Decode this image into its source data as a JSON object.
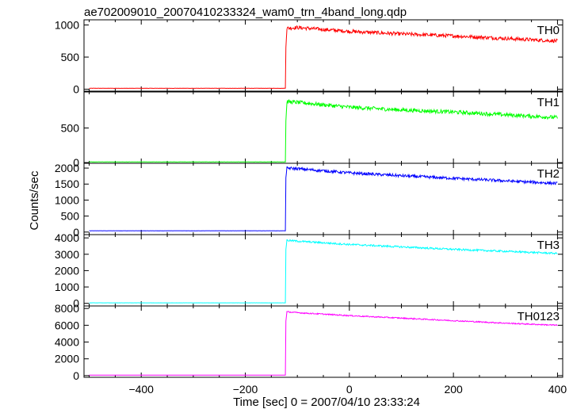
{
  "chart_data": {
    "type": "line",
    "title": "ae702009010_20070410233324_wam0_trn_4band_long.qdp",
    "xlabel": "Time [sec] 0 = 2007/04/10 23:33:24",
    "ylabel": "Counts/sec",
    "xlim": [
      -510,
      410
    ],
    "x_ticks": [
      -400,
      -200,
      0,
      200,
      400
    ],
    "grid": false,
    "panels": [
      {
        "name": "TH0",
        "color": "#ff0000",
        "ylim": [
          -30,
          1080
        ],
        "y_ticks": [
          0,
          500,
          1000
        ],
        "background_level": 15,
        "trigger_time": -122,
        "peak_level": 950,
        "end_level": 750,
        "noise": 28,
        "points": [
          [
            -500,
            15
          ],
          [
            -123,
            15
          ],
          [
            -122,
            650
          ],
          [
            -120,
            950
          ],
          [
            -100,
            960
          ],
          [
            0,
            900
          ],
          [
            100,
            860
          ],
          [
            200,
            830
          ],
          [
            300,
            790
          ],
          [
            400,
            750
          ]
        ]
      },
      {
        "name": "TH1",
        "color": "#00ff00",
        "ylim": [
          -10,
          1020
        ],
        "y_ticks": [
          0,
          500
        ],
        "background_level": 10,
        "trigger_time": -122,
        "peak_level": 880,
        "end_level": 650,
        "noise": 28,
        "points": [
          [
            -500,
            10
          ],
          [
            -123,
            10
          ],
          [
            -122,
            600
          ],
          [
            -120,
            880
          ],
          [
            -100,
            870
          ],
          [
            0,
            800
          ],
          [
            100,
            760
          ],
          [
            200,
            730
          ],
          [
            300,
            690
          ],
          [
            400,
            650
          ]
        ]
      },
      {
        "name": "TH2",
        "color": "#0000ff",
        "ylim": [
          -80,
          2150
        ],
        "y_ticks": [
          0,
          500,
          1000,
          1500,
          2000
        ],
        "background_level": 40,
        "trigger_time": -122,
        "peak_level": 2000,
        "end_level": 1520,
        "noise": 45,
        "points": [
          [
            -500,
            40
          ],
          [
            -123,
            40
          ],
          [
            -122,
            1700
          ],
          [
            -120,
            2000
          ],
          [
            -100,
            1980
          ],
          [
            0,
            1850
          ],
          [
            100,
            1760
          ],
          [
            200,
            1680
          ],
          [
            300,
            1600
          ],
          [
            400,
            1520
          ]
        ]
      },
      {
        "name": "TH3",
        "color": "#00ffff",
        "ylim": [
          -160,
          4200
        ],
        "y_ticks": [
          0,
          1000,
          2000,
          3000,
          4000
        ],
        "background_level": 30,
        "trigger_time": -122,
        "peak_level": 3850,
        "end_level": 3050,
        "noise": 55,
        "points": [
          [
            -500,
            30
          ],
          [
            -123,
            30
          ],
          [
            -122,
            3300
          ],
          [
            -120,
            3850
          ],
          [
            -100,
            3800
          ],
          [
            0,
            3600
          ],
          [
            100,
            3450
          ],
          [
            200,
            3300
          ],
          [
            300,
            3180
          ],
          [
            400,
            3050
          ]
        ]
      },
      {
        "name": "TH0123",
        "color": "#ff00ff",
        "ylim": [
          -200,
          8300
        ],
        "y_ticks": [
          0,
          2000,
          4000,
          6000,
          8000
        ],
        "background_level": 60,
        "trigger_time": -122,
        "peak_level": 7600,
        "end_level": 6000,
        "noise": 70,
        "points": [
          [
            -500,
            60
          ],
          [
            -123,
            60
          ],
          [
            -122,
            6500
          ],
          [
            -120,
            7600
          ],
          [
            -100,
            7500
          ],
          [
            0,
            7150
          ],
          [
            100,
            6850
          ],
          [
            200,
            6550
          ],
          [
            300,
            6250
          ],
          [
            400,
            6000
          ]
        ]
      }
    ]
  }
}
